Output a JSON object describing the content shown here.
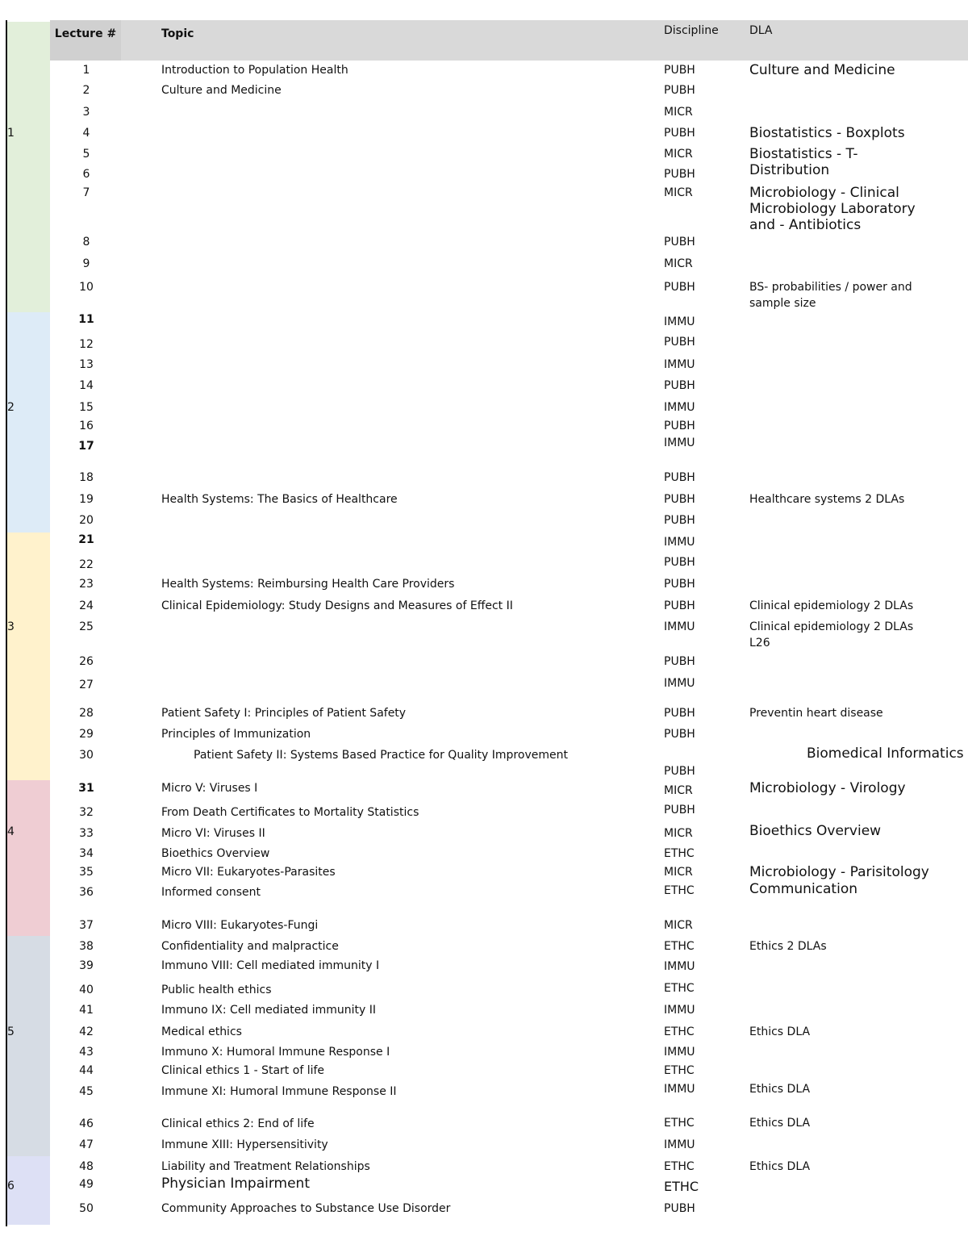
{
  "header": {
    "lecture": "Lecture #",
    "topic": "Topic",
    "discipline": "Discipline",
    "dla": "DLA"
  },
  "blocks": [
    {
      "label": "1"
    },
    {
      "label": "2"
    },
    {
      "label": "3"
    },
    {
      "label": "4"
    },
    {
      "label": "5"
    },
    {
      "label": "6"
    }
  ],
  "rows": [
    {
      "lecture": "1",
      "topic": "Introduction to Population Health",
      "discipline": "PUBH",
      "dla": "Culture and Medicine"
    },
    {
      "lecture": "2",
      "topic": "Culture and Medicine",
      "discipline": "PUBH"
    },
    {
      "lecture": "3",
      "discipline": "MICR"
    },
    {
      "lecture": "4",
      "discipline": "PUBH",
      "dla": "Biostatistics - Boxplots"
    },
    {
      "lecture": "5",
      "discipline": "MICR",
      "dla": "Biostatistics - T-Distribution"
    },
    {
      "lecture": "6",
      "discipline": "PUBH"
    },
    {
      "lecture": "7",
      "discipline": "MICR",
      "dla": "Microbiology - Clinical Microbiology Laboratory and  - Antibiotics"
    },
    {
      "lecture": "8",
      "discipline": "PUBH"
    },
    {
      "lecture": "9",
      "discipline": "MICR"
    },
    {
      "lecture": "10",
      "discipline": "PUBH",
      "dla": "BS- probabilities / power and sample size"
    },
    {
      "lecture": "11",
      "discipline": "IMMU"
    },
    {
      "lecture": "12",
      "discipline": "PUBH"
    },
    {
      "lecture": "13",
      "discipline": "IMMU"
    },
    {
      "lecture": "14",
      "discipline": "PUBH"
    },
    {
      "lecture": "15",
      "discipline": "IMMU"
    },
    {
      "lecture": "16",
      "discipline": "PUBH"
    },
    {
      "lecture": "17",
      "discipline": "IMMU"
    },
    {
      "lecture": "18",
      "discipline": "PUBH"
    },
    {
      "lecture": "19",
      "topic": "Health Systems: The Basics of Healthcare",
      "discipline": "PUBH",
      "dla": "Healthcare systems 2 DLAs"
    },
    {
      "lecture": "20",
      "discipline": "PUBH"
    },
    {
      "lecture": "21",
      "discipline": "IMMU"
    },
    {
      "lecture": "22",
      "discipline": "PUBH"
    },
    {
      "lecture": "23",
      "topic": "Health Systems: Reimbursing Health Care Providers",
      "discipline": "PUBH"
    },
    {
      "lecture": "24",
      "topic": "Clinical Epidemiology: Study Designs and Measures of Effect II",
      "discipline": "PUBH",
      "dla": "Clinical epidemiology 2 DLAs"
    },
    {
      "lecture": "25",
      "discipline": "IMMU",
      "dla": "Clinical epidemiology 2 DLAs L26"
    },
    {
      "lecture": "26",
      "discipline": "PUBH"
    },
    {
      "lecture": "27",
      "discipline": "IMMU"
    },
    {
      "lecture": "28",
      "topic": "Patient Safety I: Principles of Patient Safety",
      "discipline": "PUBH",
      "dla": "Preventin heart disease"
    },
    {
      "lecture": "29",
      "topic": "Principles of Immunization",
      "discipline": "PUBH"
    },
    {
      "lecture": "30",
      "topic": "Patient Safety II: Systems Based Practice for Quality Improvement",
      "discipline": "PUBH",
      "dla": "Biomedical Informatics"
    },
    {
      "lecture": "31",
      "topic": "Micro V: Viruses I",
      "discipline": "MICR",
      "dla": "Microbiology - Virology"
    },
    {
      "lecture": "32",
      "topic": "From Death Certificates to Mortality Statistics",
      "discipline": "PUBH"
    },
    {
      "lecture": "33",
      "topic": "Micro VI: Viruses II",
      "discipline": "MICR",
      "dla": "Bioethics Overview"
    },
    {
      "lecture": "34",
      "topic": "Bioethics Overview",
      "discipline": "ETHC"
    },
    {
      "lecture": "35",
      "topic": "Micro VII: Eukaryotes-Parasites",
      "discipline": "MICR",
      "dla": "Microbiology - Parisitology"
    },
    {
      "lecture": "36",
      "topic": "Informed consent",
      "discipline": "ETHC",
      "dla": "Communication"
    },
    {
      "lecture": "37",
      "topic": "Micro VIII: Eukaryotes-Fungi",
      "discipline": "MICR"
    },
    {
      "lecture": "38",
      "topic": "Confidentiality and malpractice",
      "discipline": "ETHC",
      "dla": "Ethics 2 DLAs"
    },
    {
      "lecture": "39",
      "topic": "Immuno VIII: Cell mediated immunity I",
      "discipline": "IMMU"
    },
    {
      "lecture": "40",
      "topic": "Public health ethics",
      "discipline": "ETHC"
    },
    {
      "lecture": "41",
      "topic": "Immuno IX: Cell mediated immunity II",
      "discipline": "IMMU"
    },
    {
      "lecture": "42",
      "topic": "Medical ethics",
      "discipline": "ETHC",
      "dla": "Ethics DLA"
    },
    {
      "lecture": "43",
      "topic": "Immuno X: Humoral Immune Response I",
      "discipline": "IMMU"
    },
    {
      "lecture": "44",
      "topic": "Clinical ethics 1 - Start of life",
      "discipline": "ETHC"
    },
    {
      "lecture": "45",
      "topic": "Immune XI: Humoral Immune Response II",
      "discipline": "IMMU",
      "dla": "Ethics DLA"
    },
    {
      "lecture": "46",
      "topic": "Clinical ethics 2: End of life",
      "discipline": "ETHC",
      "dla": "Ethics DLA"
    },
    {
      "lecture": "47",
      "topic": "Immune XIII: Hypersensitivity",
      "discipline": "IMMU"
    },
    {
      "lecture": "48",
      "topic": "Liability and Treatment Relationships",
      "discipline": "ETHC",
      "dla": "Ethics DLA"
    },
    {
      "lecture": "49",
      "topic": "Physician Impairment",
      "discipline": "ETHC"
    },
    {
      "lecture": "50",
      "topic": "Community Approaches to Substance Use Disorder",
      "discipline": "PUBH"
    }
  ]
}
